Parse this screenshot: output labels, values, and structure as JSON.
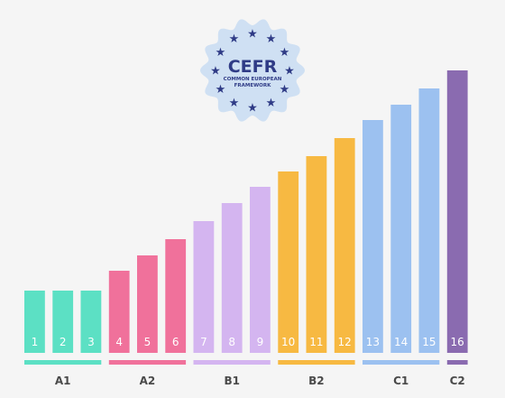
{
  "seal": {
    "title": "CEFR",
    "line1": "COMMON EUROPEAN",
    "line2": "FRAMEWORK",
    "icon": "eu-star-circle-seal-icon",
    "fill_color": "#cfe0f3",
    "text_color": "#2f3b86"
  },
  "chart_data": {
    "type": "bar",
    "title": "",
    "xlabel": "",
    "ylabel": "",
    "categories": [
      "1",
      "2",
      "3",
      "4",
      "5",
      "6",
      "7",
      "8",
      "9",
      "10",
      "11",
      "12",
      "13",
      "14",
      "15",
      "16"
    ],
    "values": [
      69,
      69,
      69,
      91,
      108,
      126,
      146,
      166,
      184,
      201,
      218,
      238,
      258,
      275,
      293,
      313
    ],
    "ylim": [
      0,
      313
    ],
    "grid": false,
    "legend": "none",
    "groups": [
      {
        "label": "A1",
        "start": 0,
        "end": 2,
        "color": "#5ce0c4"
      },
      {
        "label": "A2",
        "start": 3,
        "end": 5,
        "color": "#f0719b"
      },
      {
        "label": "B1",
        "start": 6,
        "end": 8,
        "color": "#d4b5f0"
      },
      {
        "label": "B2",
        "start": 9,
        "end": 11,
        "color": "#f7b942"
      },
      {
        "label": "C1",
        "start": 12,
        "end": 14,
        "color": "#9cc1f0"
      },
      {
        "label": "C2",
        "start": 15,
        "end": 15,
        "color": "#8a6bb0"
      }
    ]
  }
}
